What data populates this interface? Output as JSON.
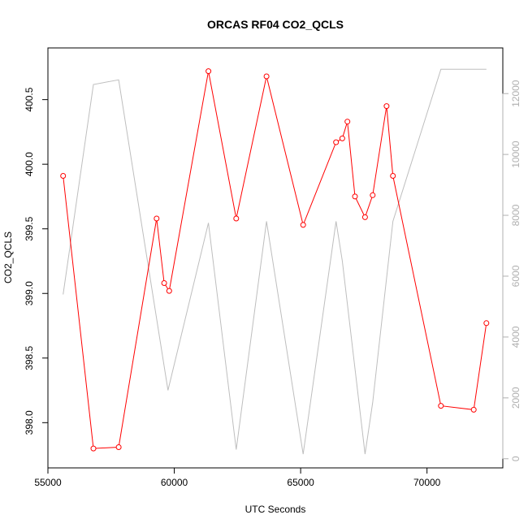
{
  "chart_data": {
    "type": "line",
    "title": "ORCAS RF04 CO2_QCLS",
    "xlabel": "UTC Seconds",
    "ylabel": "CO2_QCLS",
    "xlim": [
      55000,
      73000
    ],
    "ylim": [
      397.65,
      400.9
    ],
    "y2lim": [
      -300,
      13500
    ],
    "x_ticks": [
      55000,
      60000,
      65000,
      70000
    ],
    "x_tick_labels": [
      "55000",
      "60000",
      "65000",
      "70000"
    ],
    "y_ticks": [
      398.0,
      398.5,
      399.0,
      399.5,
      400.0,
      400.5
    ],
    "y_tick_labels": [
      "398.0",
      "398.5",
      "399.0",
      "399.5",
      "400.0",
      "400.5"
    ],
    "y2_ticks": [
      0,
      2000,
      4000,
      6000,
      8000,
      10000,
      12000
    ],
    "y2_tick_labels": [
      "0",
      "2000",
      "4000",
      "6000",
      "8000",
      "10000",
      "12000"
    ],
    "grid": false,
    "colors": {
      "primary": "#ff0000",
      "secondary": "#bebebe",
      "axis": "#000000",
      "axis2": "#b0b0b0"
    },
    "series": [
      {
        "axis": "left",
        "style": "line+open-circles",
        "color": "#ff0000",
        "x": [
          55600,
          56800,
          57800,
          59300,
          59600,
          59800,
          61350,
          62450,
          63650,
          65100,
          66400,
          66650,
          66850,
          67150,
          67550,
          67850,
          68400,
          68650,
          70550,
          71850,
          72350
        ],
        "y": [
          399.91,
          397.8,
          397.81,
          399.58,
          399.08,
          399.02,
          400.72,
          399.58,
          400.68,
          399.53,
          400.17,
          400.2,
          400.33,
          399.75,
          399.59,
          399.76,
          400.45,
          399.91,
          398.13,
          398.1,
          398.77
        ]
      },
      {
        "axis": "right",
        "style": "line",
        "color": "#bebebe",
        "x": [
          55600,
          56800,
          57800,
          59750,
          61350,
          62450,
          63650,
          65100,
          66400,
          66650,
          67550,
          67850,
          68650,
          70550,
          72350
        ],
        "y": [
          5400,
          12300,
          12450,
          2250,
          7750,
          300,
          7800,
          150,
          7800,
          6500,
          150,
          1850,
          7800,
          12800,
          12800
        ]
      }
    ]
  }
}
